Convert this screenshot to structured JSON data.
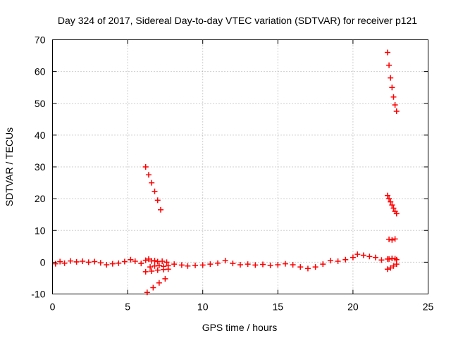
{
  "chart_data": {
    "type": "scatter",
    "title": "Day 324 of 2017, Sidereal Day-to-day VTEC variation (SDTVAR) for receiver p121",
    "xlabel": "GPS time / hours",
    "ylabel": "SDTVAR / TECUs",
    "xlim": [
      0,
      25
    ],
    "ylim": [
      -10,
      70
    ],
    "xticks": [
      0,
      5,
      10,
      15,
      20,
      25
    ],
    "yticks": [
      -10,
      0,
      10,
      20,
      30,
      40,
      50,
      60,
      70
    ],
    "grid": true,
    "marker": "+",
    "color": "#ff0000",
    "series": [
      {
        "name": "SDTVAR",
        "x": [
          0.2,
          0.5,
          0.8,
          1.2,
          1.6,
          2.0,
          2.4,
          2.8,
          3.2,
          3.6,
          4.0,
          4.4,
          4.8,
          5.2,
          5.5,
          5.9,
          6.2,
          6.4,
          6.6,
          6.8,
          7.0,
          7.3,
          7.6,
          8.1,
          8.6,
          9.0,
          9.5,
          10.0,
          10.5,
          11.0,
          11.5,
          12.0,
          12.5,
          13.0,
          13.5,
          14.0,
          14.5,
          15.0,
          15.5,
          16.0,
          16.5,
          17.0,
          17.5,
          18.0,
          18.5,
          19.0,
          19.5,
          20.0,
          20.3,
          20.7,
          21.1,
          21.5,
          21.9,
          22.3,
          22.6,
          22.9,
          6.2,
          6.6,
          7.0,
          7.4,
          7.7,
          6.3,
          6.7,
          7.1,
          7.5,
          6.5,
          6.8,
          7.1,
          7.4,
          7.7,
          6.2,
          6.4,
          6.6,
          6.8,
          7.0,
          7.2,
          22.3,
          22.4,
          22.5,
          22.6,
          22.7,
          22.8,
          22.9,
          22.4,
          22.6,
          22.8,
          22.4,
          22.6,
          22.8,
          22.3,
          22.4,
          22.5,
          22.6,
          22.7,
          22.8,
          22.9,
          22.3,
          22.5,
          22.7,
          22.9
        ],
        "y": [
          -0.5,
          0.2,
          -0.3,
          0.4,
          0.1,
          0.3,
          0.0,
          0.2,
          -0.2,
          -0.8,
          -0.5,
          -0.3,
          0.2,
          0.8,
          0.3,
          -0.4,
          0.6,
          1.0,
          0.4,
          0.5,
          0.2,
          0.3,
          0.0,
          -0.6,
          -0.9,
          -1.2,
          -1.0,
          -0.9,
          -0.6,
          -0.3,
          0.5,
          -0.4,
          -0.8,
          -0.6,
          -0.9,
          -0.7,
          -1.0,
          -0.8,
          -0.5,
          -0.8,
          -1.5,
          -2.0,
          -1.5,
          -0.6,
          0.5,
          0.3,
          0.8,
          1.5,
          2.5,
          2.2,
          1.8,
          1.5,
          0.7,
          1.0,
          1.2,
          0.8,
          -3.0,
          -2.8,
          -2.5,
          -2.3,
          -2.2,
          -9.5,
          -8.0,
          -6.5,
          -5.2,
          -1.5,
          -1.2,
          -1.0,
          -1.3,
          -1.1,
          30.0,
          27.5,
          25.0,
          22.3,
          19.5,
          16.5,
          66.0,
          62.0,
          58.0,
          55.0,
          52.0,
          49.5,
          47.5,
          7.2,
          7.0,
          7.3,
          1.0,
          1.2,
          1.1,
          21.0,
          20.0,
          19.0,
          18.0,
          17.0,
          16.0,
          15.3,
          -2.2,
          -1.8,
          -1.2,
          -0.6
        ]
      }
    ]
  }
}
